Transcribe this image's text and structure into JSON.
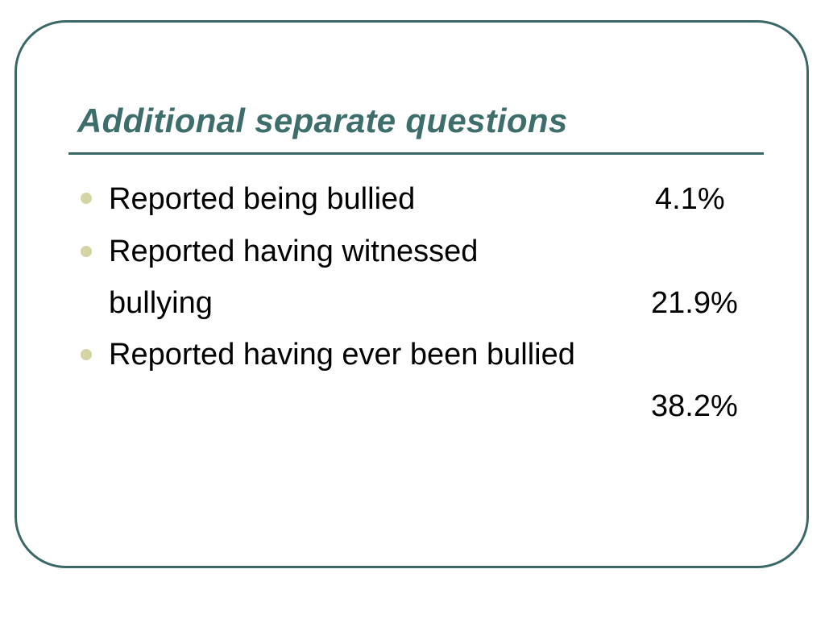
{
  "slide": {
    "title": "Additional separate questions",
    "items": [
      {
        "label": "Reported being bullied",
        "value": "4.1%"
      },
      {
        "label_line1": "Reported having witnessed",
        "label_line2": "bullying",
        "value": "21.9%"
      },
      {
        "label": "Reported having ever been bullied",
        "value": "38.2%"
      }
    ],
    "colors": {
      "title": "#3d6e6b",
      "border": "#3b6867",
      "bullet": "#d4d4a4"
    }
  }
}
